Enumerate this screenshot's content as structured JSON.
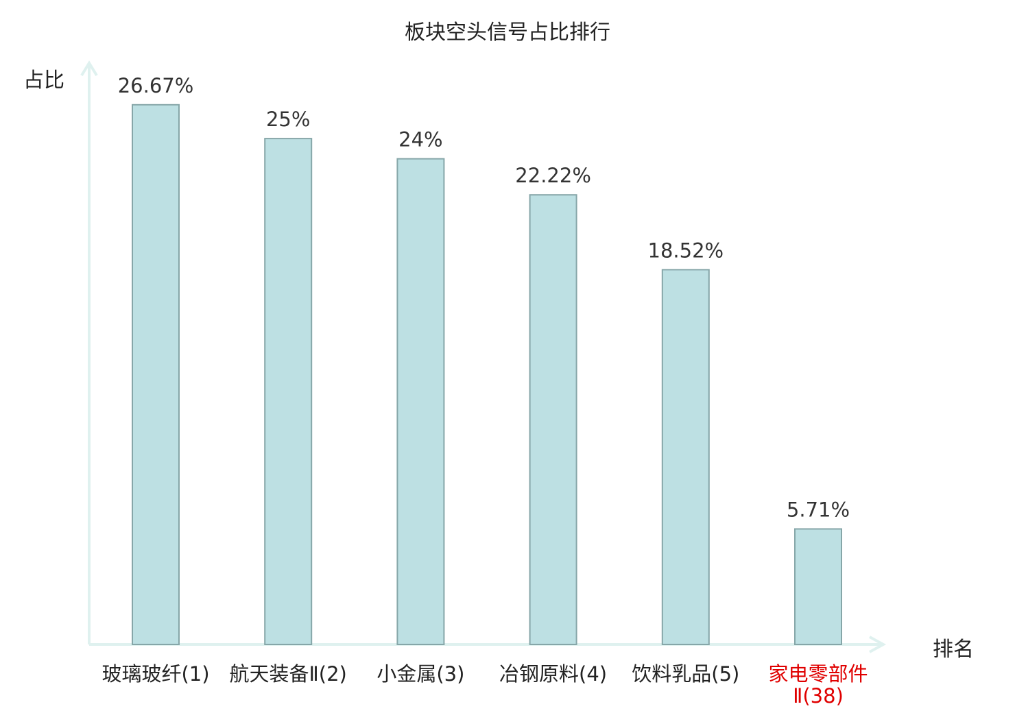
{
  "chart_data": {
    "type": "bar",
    "title": "板块空头信号占比排行",
    "ylabel": "占比",
    "xlabel": "排名",
    "categories": [
      "玻璃玻纤(1)",
      "航天装备Ⅱ(2)",
      "小金属(3)",
      "冶钢原料(4)",
      "饮料乳品(5)",
      "家电零部件Ⅱ(38)"
    ],
    "values": [
      26.67,
      25,
      24,
      22.22,
      18.52,
      5.71
    ],
    "value_labels": [
      "26.67%",
      "25%",
      "24%",
      "22.22%",
      "18.52%",
      "5.71%"
    ],
    "ylim": [
      0,
      31
    ],
    "grid": false,
    "legend": "none",
    "colors": {
      "bar_fill": "#bde0e3",
      "bar_stroke": "#86a6a8",
      "axis": "#dff1ef",
      "highlight_label": "#e00000",
      "normal_label": "#222222"
    },
    "highlight_category_index": 5
  }
}
